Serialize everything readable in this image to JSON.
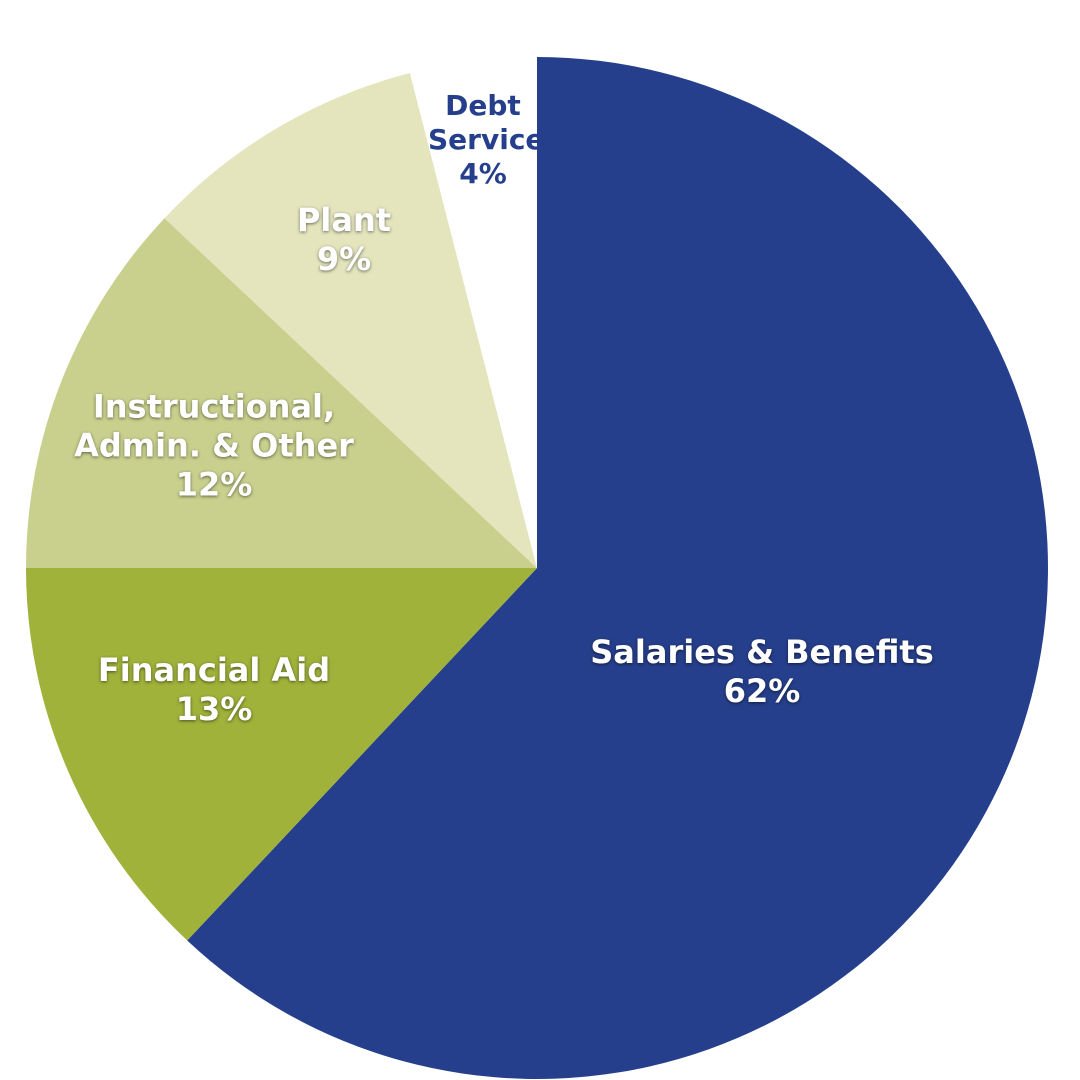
{
  "chart_data": {
    "type": "pie",
    "categories": [
      "Salaries & Benefits",
      "Financial Aid",
      "Instructional, Admin. & Other",
      "Plant",
      "Debt Service"
    ],
    "values": [
      62,
      13,
      12,
      9,
      4
    ],
    "value_labels": [
      "62%",
      "13%",
      "12%",
      "9%",
      "4%"
    ],
    "colors": [
      "#263f8c",
      "#a0b23a",
      "#c9d08d",
      "#e4e5bd",
      "#ffffff"
    ],
    "label_colors": [
      "#ffffff",
      "#ffffff",
      "#ffffff",
      "#ffffff",
      "#263f8c"
    ]
  }
}
